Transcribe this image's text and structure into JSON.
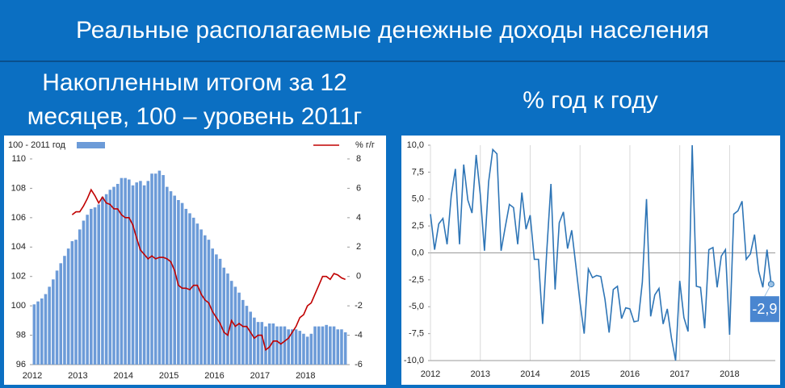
{
  "header": {
    "title": "Реальные располагаемые денежные доходы населения"
  },
  "chart_data": [
    {
      "type": "bar",
      "title": "Накопленным итогом за 12 месяцев, 100 – уровень 2011г",
      "categories": [
        "2012",
        null,
        null,
        null,
        null,
        null,
        null,
        null,
        null,
        null,
        null,
        null,
        "2013",
        null,
        null,
        null,
        null,
        null,
        null,
        null,
        null,
        null,
        null,
        null,
        "2014",
        null,
        null,
        null,
        null,
        null,
        null,
        null,
        null,
        null,
        null,
        null,
        "2015",
        null,
        null,
        null,
        null,
        null,
        null,
        null,
        null,
        null,
        null,
        null,
        "2016",
        null,
        null,
        null,
        null,
        null,
        null,
        null,
        null,
        null,
        null,
        null,
        "2017",
        null,
        null,
        null,
        null,
        null,
        null,
        null,
        null,
        null,
        null,
        null,
        "2018",
        null,
        null,
        null,
        null,
        null,
        null,
        null,
        null,
        null,
        null
      ],
      "series": [
        {
          "name": "100 - 2011 год",
          "type": "bar",
          "color": "#6c9bd8",
          "values": [
            100.1,
            100.3,
            100.5,
            100.8,
            101.3,
            101.8,
            102.4,
            102.9,
            103.4,
            103.9,
            104.4,
            104.5,
            105.2,
            105.8,
            106.2,
            106.6,
            106.7,
            106.9,
            107.4,
            107.6,
            107.9,
            108.1,
            108.3,
            108.7,
            108.7,
            108.6,
            108.2,
            108.4,
            108.5,
            108.2,
            108.5,
            109.0,
            109.0,
            109.2,
            108.9,
            108.1,
            107.8,
            107.5,
            107.2,
            107.0,
            106.6,
            106.3,
            106.0,
            105.6,
            105.2,
            104.8,
            104.5,
            103.9,
            103.5,
            103.2,
            102.6,
            102.2,
            101.7,
            101.3,
            100.9,
            100.4,
            100.0,
            99.6,
            99.2,
            98.9,
            98.9,
            98.6,
            98.8,
            98.8,
            98.6,
            98.6,
            98.6,
            98.4,
            98.4,
            98.4,
            98.3,
            98.1,
            97.9,
            98.1,
            98.6,
            98.6,
            98.6,
            98.7,
            98.6,
            98.6,
            98.4,
            98.4,
            98.2
          ]
        },
        {
          "name": "%  г/г",
          "type": "line",
          "color": "#c00000",
          "axis": "y2",
          "values": [
            null,
            null,
            null,
            null,
            null,
            null,
            null,
            null,
            null,
            null,
            4.2,
            4.4,
            4.4,
            4.8,
            5.3,
            5.9,
            5.5,
            5.0,
            5.4,
            5.0,
            4.9,
            4.6,
            4.6,
            4.2,
            4.0,
            4.0,
            3.5,
            2.6,
            1.8,
            1.5,
            1.2,
            1.4,
            1.2,
            1.3,
            1.3,
            1.2,
            1.0,
            0.4,
            -0.6,
            -0.8,
            -0.8,
            -0.9,
            -0.6,
            -0.6,
            -1.2,
            -1.6,
            -1.8,
            -2.4,
            -2.8,
            -3.2,
            -3.8,
            -4.0,
            -3.0,
            -3.4,
            -3.2,
            -3.4,
            -3.4,
            -3.8,
            -4.2,
            -4.0,
            -4.0,
            -5.0,
            -4.8,
            -4.4,
            -4.4,
            -4.6,
            -4.4,
            -4.2,
            -3.8,
            -3.4,
            -2.8,
            -2.6,
            -2.0,
            -1.8,
            -1.2,
            -0.6,
            0.0,
            0.0,
            -0.2,
            0.2,
            0.1,
            -0.1,
            -0.2
          ]
        }
      ],
      "ylim": [
        96,
        110
      ],
      "yticks": [
        96,
        98,
        100,
        102,
        104,
        106,
        108,
        110
      ],
      "y2lim": [
        -6,
        8
      ],
      "y2ticks": [
        -6,
        -4,
        -2,
        0,
        2,
        4,
        6,
        8
      ],
      "legend": "top"
    },
    {
      "type": "line",
      "title": "% год к году",
      "categories": [
        "2012",
        null,
        null,
        null,
        null,
        null,
        null,
        null,
        null,
        null,
        null,
        null,
        "2013",
        null,
        null,
        null,
        null,
        null,
        null,
        null,
        null,
        null,
        null,
        null,
        "2014",
        null,
        null,
        null,
        null,
        null,
        null,
        null,
        null,
        null,
        null,
        null,
        "2015",
        null,
        null,
        null,
        null,
        null,
        null,
        null,
        null,
        null,
        null,
        null,
        "2016",
        null,
        null,
        null,
        null,
        null,
        null,
        null,
        null,
        null,
        null,
        null,
        "2017",
        null,
        null,
        null,
        null,
        null,
        null,
        null,
        null,
        null,
        null,
        null,
        "2018",
        null,
        null,
        null,
        null,
        null,
        null,
        null,
        null,
        null,
        null
      ],
      "color": "#2e75b6",
      "values": [
        3.6,
        0.3,
        2.7,
        3.2,
        0.8,
        5.3,
        7.8,
        0.8,
        8.2,
        4.9,
        3.7,
        9.1,
        5.4,
        0.2,
        6.6,
        9.6,
        9.2,
        0.2,
        2.4,
        4.5,
        4.2,
        0.8,
        5.6,
        2.2,
        3.5,
        -0.6,
        -0.6,
        -6.6,
        0.2,
        6.4,
        -3.4,
        2.8,
        3.8,
        0.4,
        2.1,
        -1.2,
        -4.6,
        -7.5,
        -1.5,
        -2.3,
        -2.1,
        -2.2,
        -4.3,
        -7.4,
        -3.4,
        -3.1,
        -6.1,
        -5.1,
        -5.2,
        -6.4,
        -6.3,
        -2.7,
        5.0,
        -5.9,
        -3.9,
        -3.3,
        -6.6,
        -5.2,
        -7.9,
        -10.0,
        -2.6,
        -6.0,
        -7.3,
        10.0,
        -3.1,
        -3.2,
        -7.0,
        0.3,
        0.5,
        -3.2,
        -0.3,
        0.3,
        -7.6,
        3.6,
        3.9,
        4.8,
        -0.6,
        -0.1,
        1.7,
        -1.7,
        -3.2,
        0.3,
        -2.9
      ],
      "value_labels": [
        null,
        null,
        null,
        null,
        null,
        null,
        null,
        null,
        null,
        null,
        null,
        null,
        null,
        null,
        null,
        null,
        null,
        null,
        null,
        null,
        null,
        null,
        null,
        null,
        null,
        null,
        null,
        null,
        null,
        null,
        null,
        null,
        null,
        null,
        null,
        null,
        null,
        null,
        null,
        null,
        null,
        null,
        null,
        null,
        null,
        null,
        null,
        null,
        null,
        null,
        null,
        null,
        null,
        null,
        null,
        null,
        null,
        null,
        null,
        null,
        null,
        null,
        null,
        null,
        null,
        null,
        null,
        null,
        null,
        null,
        null,
        null,
        null,
        null,
        null,
        null,
        null,
        null,
        null,
        null,
        null,
        null,
        "-2,9"
      ],
      "ylim": [
        -10,
        10
      ],
      "yticks": [
        {
          "value": -10,
          "label": "-10,0"
        },
        {
          "value": -7.5,
          "label": "-7,5"
        },
        {
          "value": -5,
          "label": "-5,0"
        },
        {
          "value": -2.5,
          "label": "-2,5"
        },
        {
          "value": 0,
          "label": "0,0"
        },
        {
          "value": 2.5,
          "label": "2,5"
        },
        {
          "value": 5,
          "label": "5,0"
        },
        {
          "value": 7.5,
          "label": "7,5"
        },
        {
          "value": 10,
          "label": "10,0"
        }
      ],
      "grid": true
    }
  ]
}
